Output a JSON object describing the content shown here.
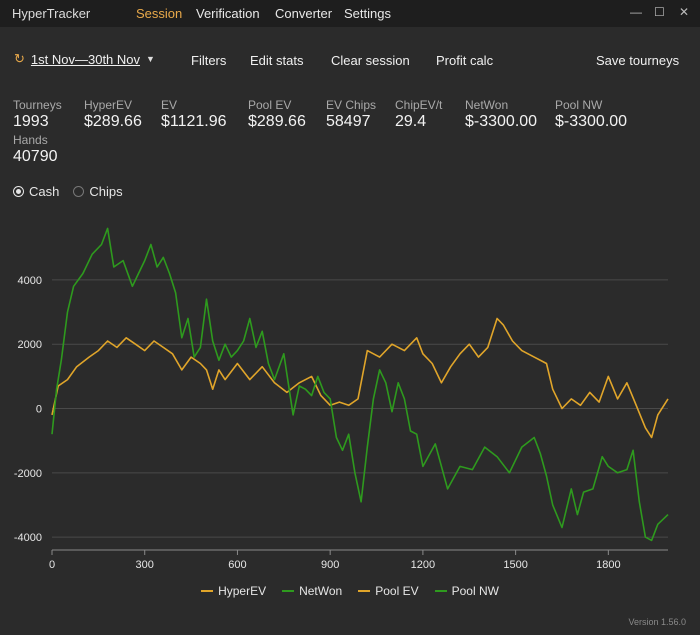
{
  "app": {
    "title": "HyperTracker"
  },
  "menu": [
    {
      "label": "Session",
      "active": true
    },
    {
      "label": "Verification",
      "active": false
    },
    {
      "label": "Converter",
      "active": false
    },
    {
      "label": "Settings",
      "active": false
    }
  ],
  "window": {
    "minimize": "—",
    "maximize": "☐",
    "close": "✕"
  },
  "toolbar": {
    "date_range": "1st Nov—30th Nov",
    "filters": "Filters",
    "edit_stats": "Edit stats",
    "clear_session": "Clear session",
    "profit_calc": "Profit calc",
    "save_tourneys": "Save tourneys"
  },
  "stats": {
    "tourneys": {
      "label": "Tourneys",
      "value": "1993"
    },
    "hyperev": {
      "label": "HyperEV",
      "value": "$289.66"
    },
    "ev": {
      "label": "EV",
      "value": "$1121.96"
    },
    "poolev": {
      "label": "Pool EV",
      "value": "$289.66"
    },
    "evchips": {
      "label": "EV Chips",
      "value": "58497"
    },
    "chipev": {
      "label": "ChipEV/t",
      "value": "29.4"
    },
    "netwon": {
      "label": "NetWon",
      "value": "$-3300.00"
    },
    "poolnw": {
      "label": "Pool NW",
      "value": "$-3300.00"
    },
    "hands": {
      "label": "Hands",
      "value": "40790"
    }
  },
  "mode": {
    "cash": "Cash",
    "chips": "Chips",
    "selected": "cash"
  },
  "chart_data": {
    "type": "line",
    "x_ticks": [
      0,
      300,
      600,
      900,
      1200,
      1500,
      1800
    ],
    "y_ticks": [
      -4000,
      -2000,
      0,
      2000,
      4000
    ],
    "xlim": [
      0,
      1993
    ],
    "ylim": [
      -4400,
      5800
    ],
    "grid": true,
    "legend_position": "bottom",
    "series": [
      {
        "name": "HyperEV",
        "color": "#e0a52a",
        "x": [
          0,
          20,
          50,
          80,
          120,
          150,
          180,
          210,
          240,
          270,
          300,
          330,
          360,
          390,
          420,
          450,
          480,
          500,
          520,
          540,
          560,
          600,
          640,
          680,
          720,
          760,
          800,
          840,
          870,
          900,
          930,
          960,
          990,
          1020,
          1060,
          1100,
          1140,
          1180,
          1200,
          1230,
          1260,
          1290,
          1320,
          1350,
          1380,
          1410,
          1440,
          1460,
          1490,
          1520,
          1560,
          1600,
          1620,
          1650,
          1680,
          1710,
          1740,
          1770,
          1800,
          1830,
          1860,
          1890,
          1920,
          1940,
          1960,
          1993
        ],
        "values": [
          -200,
          700,
          900,
          1300,
          1600,
          1800,
          2100,
          1900,
          2200,
          2000,
          1800,
          2100,
          1900,
          1700,
          1200,
          1600,
          1400,
          1200,
          600,
          1200,
          900,
          1400,
          900,
          1300,
          800,
          500,
          800,
          1000,
          400,
          100,
          200,
          100,
          300,
          1800,
          1600,
          2000,
          1800,
          2200,
          1700,
          1400,
          800,
          1300,
          1700,
          2000,
          1600,
          1900,
          2800,
          2600,
          2100,
          1800,
          1600,
          1400,
          600,
          0,
          300,
          100,
          500,
          200,
          1000,
          300,
          800,
          100,
          -600,
          -900,
          -200,
          300
        ]
      },
      {
        "name": "NetWon",
        "color": "#2e9a1e",
        "x": [
          0,
          15,
          30,
          50,
          70,
          100,
          130,
          160,
          180,
          200,
          230,
          260,
          280,
          300,
          320,
          340,
          360,
          380,
          400,
          420,
          440,
          460,
          480,
          500,
          520,
          540,
          560,
          580,
          600,
          620,
          640,
          660,
          680,
          700,
          720,
          750,
          780,
          800,
          820,
          840,
          860,
          880,
          900,
          920,
          940,
          960,
          980,
          1000,
          1020,
          1040,
          1060,
          1080,
          1100,
          1120,
          1140,
          1160,
          1180,
          1200,
          1240,
          1280,
          1320,
          1360,
          1400,
          1440,
          1480,
          1520,
          1560,
          1580,
          1600,
          1620,
          1650,
          1680,
          1700,
          1720,
          1750,
          1780,
          1800,
          1830,
          1860,
          1880,
          1900,
          1920,
          1940,
          1960,
          1993
        ],
        "values": [
          -800,
          600,
          1500,
          3000,
          3800,
          4200,
          4800,
          5100,
          5600,
          4400,
          4600,
          3800,
          4200,
          4600,
          5100,
          4400,
          4700,
          4200,
          3600,
          2200,
          2800,
          1600,
          1900,
          3400,
          2100,
          1500,
          2000,
          1600,
          1800,
          2100,
          2800,
          1900,
          2400,
          1400,
          900,
          1700,
          -200,
          700,
          600,
          400,
          1000,
          500,
          300,
          -900,
          -1300,
          -800,
          -2000,
          -2900,
          -1200,
          300,
          1200,
          800,
          -100,
          800,
          300,
          -700,
          -800,
          -1800,
          -1100,
          -2500,
          -1800,
          -1900,
          -1200,
          -1500,
          -2000,
          -1200,
          -900,
          -1400,
          -2100,
          -3000,
          -3700,
          -2500,
          -3300,
          -2600,
          -2500,
          -1500,
          -1800,
          -2000,
          -1900,
          -1300,
          -2900,
          -4000,
          -4100,
          -3600,
          -3300
        ]
      }
    ]
  }
}
